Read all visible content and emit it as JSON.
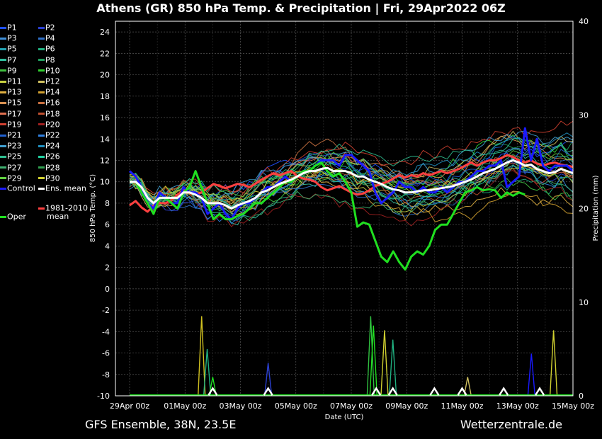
{
  "header": {
    "title": "Athens  (GR)  850 hPa Temp. & Precipitation | Fri, 29Apr2022 06Z"
  },
  "footer": {
    "model": "GFS Ensemble, 38N, 23.5E",
    "site": "Wetterzentrale.de"
  },
  "legend": {
    "members": [
      {
        "label": "P1",
        "color": "#1f4fff"
      },
      {
        "label": "P2",
        "color": "#2a3fd0"
      },
      {
        "label": "P3",
        "color": "#3f8fd8"
      },
      {
        "label": "P4",
        "color": "#2f6fc8"
      },
      {
        "label": "P5",
        "color": "#20a0b0"
      },
      {
        "label": "P6",
        "color": "#20b080"
      },
      {
        "label": "P7",
        "color": "#30c0a0"
      },
      {
        "label": "P8",
        "color": "#20a060"
      },
      {
        "label": "P9",
        "color": "#40c040"
      },
      {
        "label": "P10",
        "color": "#30d030"
      },
      {
        "label": "P11",
        "color": "#c8d040"
      },
      {
        "label": "P12",
        "color": "#d0c060"
      },
      {
        "label": "P13",
        "color": "#e0b040"
      },
      {
        "label": "P14",
        "color": "#d0a030"
      },
      {
        "label": "P15",
        "color": "#d89050"
      },
      {
        "label": "P16",
        "color": "#c87040"
      },
      {
        "label": "P17",
        "color": "#e07050"
      },
      {
        "label": "P18",
        "color": "#c05030"
      },
      {
        "label": "P19",
        "color": "#d04030"
      },
      {
        "label": "P20",
        "color": "#a02020"
      },
      {
        "label": "P21",
        "color": "#2060d0"
      },
      {
        "label": "P22",
        "color": "#3080e0"
      },
      {
        "label": "P23",
        "color": "#40a0d0"
      },
      {
        "label": "P24",
        "color": "#2090c0"
      },
      {
        "label": "P25",
        "color": "#30c090"
      },
      {
        "label": "P26",
        "color": "#20d0a0"
      },
      {
        "label": "P27",
        "color": "#40b070"
      },
      {
        "label": "P28",
        "color": "#30a050"
      },
      {
        "label": "P29",
        "color": "#60d040"
      },
      {
        "label": "P30",
        "color": "#d0d030"
      }
    ],
    "control": {
      "label": "Control",
      "color": "#1a1aff"
    },
    "ens_mean": {
      "label": "Ens. mean",
      "color": "#ffffff"
    },
    "climate": {
      "label1": "1981-2010",
      "label2": "mean",
      "color": "#ff4040"
    },
    "oper": {
      "label": "Oper",
      "color": "#20e020"
    }
  },
  "chart_data": {
    "type": "line",
    "xlabel": "Date (UTC)",
    "ylabel": "850 hPa Temp. (°C)",
    "y2label": "Precipitation (mm)",
    "ylim": [
      -10,
      25
    ],
    "y2lim": [
      0,
      40
    ],
    "yticks": [
      "-10",
      "-8",
      "-6",
      "-4",
      "-2",
      "0",
      "2",
      "4",
      "6",
      "8",
      "10",
      "12",
      "14",
      "16",
      "18",
      "20",
      "22",
      "24"
    ],
    "y2ticks": [
      "0",
      "10",
      "20",
      "30",
      "40"
    ],
    "xticks": [
      "29Apr 00z",
      "01May 00z",
      "03May 00z",
      "05May 00z",
      "07May 00z",
      "09May 00z",
      "11May 00z",
      "13May 00z",
      "15May 00z"
    ],
    "grid": true,
    "series": [
      {
        "name": "Control",
        "color": "#1a1aff",
        "width": 3,
        "values": [
          11,
          10.5,
          9.5,
          8,
          7.5,
          9,
          8.5,
          8,
          8,
          9.5,
          9,
          9,
          8.5,
          7,
          7.5,
          8,
          7,
          6.5,
          7.5,
          8,
          8,
          8.5,
          9,
          9.5,
          9.5,
          10,
          10.5,
          10,
          10.5,
          11,
          11,
          11.5,
          12,
          12,
          12,
          11.5,
          12.5,
          12.5,
          12,
          11.5,
          11,
          9,
          8,
          8.5,
          9,
          10,
          9.5,
          9.5,
          9,
          9.5,
          9,
          9,
          9.5,
          9,
          9.5,
          10,
          10,
          10.5,
          11,
          11,
          11.5,
          11.5,
          12,
          9.5,
          10,
          10.5,
          15,
          12,
          14,
          11.5,
          11,
          11.5,
          11.5,
          11.5,
          11
        ]
      },
      {
        "name": "Ens. mean",
        "color": "#ffffff",
        "width": 3,
        "values": [
          10,
          10,
          9.5,
          8.5,
          8,
          8.5,
          8.5,
          8.5,
          8.5,
          9,
          9,
          8.8,
          8.5,
          8,
          8,
          8,
          7.8,
          7.5,
          7.8,
          8,
          8.2,
          8.5,
          9,
          9.2,
          9.5,
          9.8,
          10,
          10.2,
          10.5,
          10.8,
          11,
          11,
          11.2,
          11.3,
          11,
          11,
          11,
          10.8,
          10.5,
          10.5,
          10.2,
          10,
          9.8,
          9.5,
          9.3,
          9.2,
          9,
          9,
          9.1,
          9.2,
          9.2,
          9.3,
          9.4,
          9.5,
          9.6,
          9.8,
          10,
          10.2,
          10.5,
          10.8,
          11,
          11.2,
          11.5,
          11.8,
          12,
          11.8,
          11.5,
          11.6,
          11.2,
          11,
          10.8,
          10.9,
          11.2,
          11,
          10.8
        ]
      },
      {
        "name": "1981-2010 mean",
        "color": "#ff4040",
        "width": 3,
        "values": [
          7.8,
          8.2,
          7.6,
          7.2,
          7.8,
          8,
          8,
          8.3,
          8.8,
          9.2,
          9,
          8.8,
          9,
          9.4,
          9.8,
          9.6,
          9.4,
          9.6,
          9.8,
          9.7,
          9.5,
          9.8,
          10.2,
          10.5,
          10.8,
          10.6,
          10.8,
          11,
          10.5,
          10.3,
          10.2,
          10,
          9.5,
          9.2,
          9.4,
          9.6,
          9.3,
          9,
          8.8,
          8.9,
          9.2,
          9.6,
          9.8,
          10,
          10.3,
          10.6,
          10.4,
          10.6,
          10.5,
          10.8,
          10.6,
          10.8,
          11,
          10.8,
          11,
          11.2,
          11.5,
          11.8,
          11.5,
          11.8,
          12,
          12,
          12.2,
          12.5,
          12.3,
          12,
          11.8,
          12,
          11.7,
          11.5,
          11.7,
          11.8,
          11.6,
          11.5,
          11.4
        ]
      },
      {
        "name": "Oper",
        "color": "#20e020",
        "width": 3,
        "values": [
          10,
          10,
          9,
          8,
          7,
          8.5,
          8.5,
          8,
          7.5,
          9,
          9.5,
          11,
          9.5,
          8,
          6.5,
          7,
          6.5,
          6.5,
          6.8,
          7,
          7.5,
          8,
          8,
          8.5,
          9,
          9.5,
          10,
          10,
          10.5,
          11,
          11,
          11.5,
          11.8,
          11,
          10.5,
          10.8,
          10,
          9,
          5.8,
          6.2,
          6,
          4.5,
          3,
          2.5,
          3.5,
          2.5,
          1.8,
          3,
          3.5,
          3.2,
          4,
          5.5,
          6,
          6,
          7,
          8,
          9,
          9.2,
          9.5,
          9.2,
          9.3,
          9.2,
          8.5,
          9,
          8.7,
          9,
          8.8
        ]
      }
    ],
    "precip_spikes": [
      {
        "day": 2.6,
        "mm": 8.5,
        "color": "#d0c020"
      },
      {
        "day": 2.8,
        "mm": 5,
        "color": "#20b080"
      },
      {
        "day": 3.0,
        "mm": 2,
        "color": "#20e020"
      },
      {
        "day": 5.0,
        "mm": 3.5,
        "color": "#2a3fd0"
      },
      {
        "day": 8.7,
        "mm": 8.5,
        "color": "#30c040"
      },
      {
        "day": 8.8,
        "mm": 7.5,
        "color": "#20e020"
      },
      {
        "day": 9.2,
        "mm": 7,
        "color": "#d0d030"
      },
      {
        "day": 9.5,
        "mm": 6,
        "color": "#20b080"
      },
      {
        "day": 12.2,
        "mm": 2,
        "color": "#d0c060"
      },
      {
        "day": 14.5,
        "mm": 4.5,
        "color": "#1a1aff"
      },
      {
        "day": 15.3,
        "mm": 7,
        "color": "#d0d030"
      }
    ]
  }
}
